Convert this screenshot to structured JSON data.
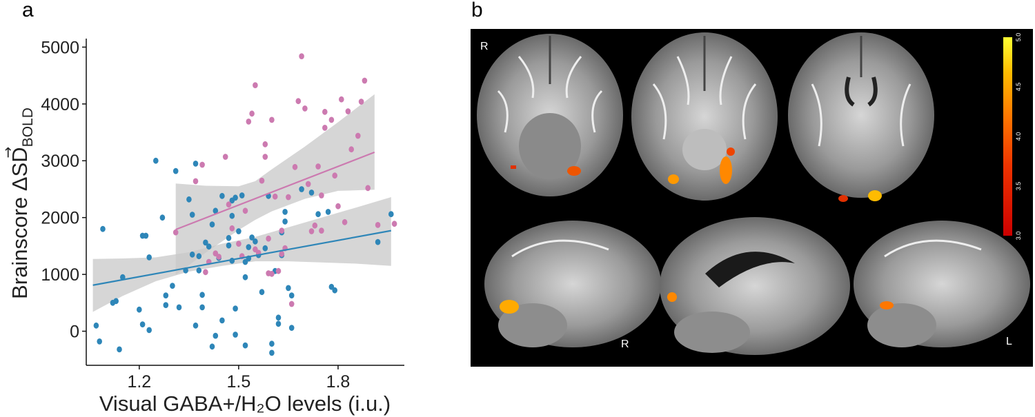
{
  "panel_labels": {
    "a": "a",
    "b": "b"
  },
  "chart_data": {
    "type": "scatter",
    "xlabel": "Visual GABA+/H₂O levels (i.u.)",
    "ylabel_main": "Brainscore ",
    "ylabel_sym": "ΔSD",
    "ylabel_sub": "BOLD",
    "xlim": [
      1.04,
      2.0
    ],
    "ylim": [
      -600,
      5150
    ],
    "xticks": [
      1.2,
      1.5,
      1.8
    ],
    "xtick_labels": [
      "1.2",
      "1.5",
      "1.8"
    ],
    "yticks": [
      0,
      1000,
      2000,
      3000,
      4000,
      5000
    ],
    "ytick_labels": [
      "0",
      "1000",
      "2000",
      "3000",
      "4000",
      "5000"
    ],
    "grid": false,
    "series": [
      {
        "color": "#2e86b8",
        "points": [
          [
            1.07,
            100
          ],
          [
            1.08,
            -180
          ],
          [
            1.09,
            1800
          ],
          [
            1.12,
            500
          ],
          [
            1.13,
            530
          ],
          [
            1.14,
            -320
          ],
          [
            1.15,
            950
          ],
          [
            1.2,
            380
          ],
          [
            1.21,
            1680
          ],
          [
            1.21,
            120
          ],
          [
            1.22,
            1680
          ],
          [
            1.23,
            1300
          ],
          [
            1.23,
            20
          ],
          [
            1.25,
            3000
          ],
          [
            1.27,
            2000
          ],
          [
            1.28,
            630
          ],
          [
            1.28,
            460
          ],
          [
            1.3,
            800
          ],
          [
            1.31,
            2820
          ],
          [
            1.32,
            420
          ],
          [
            1.34,
            1070
          ],
          [
            1.35,
            2320
          ],
          [
            1.36,
            2050
          ],
          [
            1.36,
            1350
          ],
          [
            1.37,
            2950
          ],
          [
            1.37,
            100
          ],
          [
            1.38,
            1070
          ],
          [
            1.38,
            1320
          ],
          [
            1.39,
            640
          ],
          [
            1.39,
            420
          ],
          [
            1.4,
            1560
          ],
          [
            1.41,
            1490
          ],
          [
            1.42,
            1880
          ],
          [
            1.42,
            -270
          ],
          [
            1.43,
            2120
          ],
          [
            1.43,
            -80
          ],
          [
            1.44,
            1290
          ],
          [
            1.45,
            2380
          ],
          [
            1.45,
            190
          ],
          [
            1.47,
            1640
          ],
          [
            1.47,
            1510
          ],
          [
            1.48,
            2300
          ],
          [
            1.48,
            2030
          ],
          [
            1.48,
            1240
          ],
          [
            1.49,
            2350
          ],
          [
            1.49,
            400
          ],
          [
            1.49,
            -60
          ],
          [
            1.5,
            1760
          ],
          [
            1.51,
            2390
          ],
          [
            1.52,
            950
          ],
          [
            1.52,
            1220
          ],
          [
            1.52,
            -250
          ],
          [
            1.53,
            1480
          ],
          [
            1.53,
            1280
          ],
          [
            1.54,
            1650
          ],
          [
            1.55,
            1580
          ],
          [
            1.56,
            1340
          ],
          [
            1.57,
            690
          ],
          [
            1.58,
            1460
          ],
          [
            1.59,
            2380
          ],
          [
            1.6,
            -220
          ],
          [
            1.6,
            -380
          ],
          [
            1.61,
            1060
          ],
          [
            1.62,
            240
          ],
          [
            1.62,
            130
          ],
          [
            1.63,
            1740
          ],
          [
            1.63,
            1340
          ],
          [
            1.64,
            2100
          ],
          [
            1.64,
            1930
          ],
          [
            1.65,
            760
          ],
          [
            1.66,
            60
          ],
          [
            1.66,
            630
          ],
          [
            1.69,
            2500
          ],
          [
            1.72,
            2440
          ],
          [
            1.74,
            2060
          ],
          [
            1.77,
            2100
          ],
          [
            1.78,
            780
          ],
          [
            1.79,
            720
          ],
          [
            1.92,
            1570
          ],
          [
            1.96,
            2060
          ]
        ],
        "trend": {
          "x": [
            1.06,
            1.96
          ],
          "y": [
            810,
            1770
          ]
        }
      },
      {
        "color": "#cc7ab0",
        "points": [
          [
            1.31,
            1740
          ],
          [
            1.37,
            2640
          ],
          [
            1.39,
            2930
          ],
          [
            1.41,
            1220
          ],
          [
            1.4,
            1040
          ],
          [
            1.43,
            1370
          ],
          [
            1.44,
            1310
          ],
          [
            1.46,
            3070
          ],
          [
            1.47,
            2230
          ],
          [
            1.48,
            1810
          ],
          [
            1.5,
            1540
          ],
          [
            1.51,
            1320
          ],
          [
            1.52,
            2120
          ],
          [
            1.53,
            3690
          ],
          [
            1.54,
            3830
          ],
          [
            1.55,
            4330
          ],
          [
            1.55,
            1440
          ],
          [
            1.56,
            1380
          ],
          [
            1.57,
            2650
          ],
          [
            1.58,
            3070
          ],
          [
            1.58,
            3290
          ],
          [
            1.59,
            1630
          ],
          [
            1.59,
            1020
          ],
          [
            1.6,
            1010
          ],
          [
            1.6,
            3720
          ],
          [
            1.61,
            2370
          ],
          [
            1.62,
            1060
          ],
          [
            1.63,
            1770
          ],
          [
            1.63,
            1360
          ],
          [
            1.64,
            1460
          ],
          [
            1.65,
            2360
          ],
          [
            1.66,
            480
          ],
          [
            1.67,
            2890
          ],
          [
            1.68,
            4050
          ],
          [
            1.69,
            4840
          ],
          [
            1.7,
            3920
          ],
          [
            1.71,
            2590
          ],
          [
            1.72,
            1760
          ],
          [
            1.73,
            1860
          ],
          [
            1.74,
            2900
          ],
          [
            1.75,
            2390
          ],
          [
            1.75,
            1770
          ],
          [
            1.76,
            3580
          ],
          [
            1.76,
            3860
          ],
          [
            1.78,
            3720
          ],
          [
            1.79,
            2740
          ],
          [
            1.8,
            2200
          ],
          [
            1.81,
            4080
          ],
          [
            1.82,
            1920
          ],
          [
            1.83,
            3870
          ],
          [
            1.84,
            3200
          ],
          [
            1.86,
            3440
          ],
          [
            1.87,
            4040
          ],
          [
            1.88,
            4410
          ],
          [
            1.89,
            2520
          ],
          [
            1.92,
            1870
          ],
          [
            1.97,
            1890
          ]
        ],
        "trend": {
          "x": [
            1.31,
            1.91
          ],
          "y": [
            1790,
            3150
          ]
        }
      }
    ],
    "confidence_bands": [
      {
        "upper": [
          [
            1.06,
            1270
          ],
          [
            1.15,
            1280
          ],
          [
            1.25,
            1300
          ],
          [
            1.35,
            1390
          ],
          [
            1.45,
            1540
          ],
          [
            1.55,
            1660
          ],
          [
            1.65,
            1830
          ],
          [
            1.75,
            2000
          ],
          [
            1.85,
            2170
          ],
          [
            1.96,
            2360
          ]
        ],
        "lower": [
          [
            1.06,
            340
          ],
          [
            1.15,
            620
          ],
          [
            1.25,
            880
          ],
          [
            1.35,
            1050
          ],
          [
            1.45,
            1150
          ],
          [
            1.55,
            1230
          ],
          [
            1.65,
            1230
          ],
          [
            1.75,
            1210
          ],
          [
            1.85,
            1190
          ],
          [
            1.96,
            1150
          ]
        ]
      },
      {
        "upper": [
          [
            1.31,
            2600
          ],
          [
            1.4,
            2560
          ],
          [
            1.5,
            2550
          ],
          [
            1.55,
            2640
          ],
          [
            1.6,
            2850
          ],
          [
            1.7,
            3250
          ],
          [
            1.8,
            3680
          ],
          [
            1.91,
            4170
          ]
        ],
        "lower": [
          [
            1.31,
            990
          ],
          [
            1.4,
            1380
          ],
          [
            1.5,
            1780
          ],
          [
            1.55,
            1960
          ],
          [
            1.6,
            2110
          ],
          [
            1.7,
            2330
          ],
          [
            1.8,
            2470
          ],
          [
            1.91,
            2490
          ]
        ]
      }
    ]
  },
  "brain_panel": {
    "orientation_labels": {
      "top_right": "R",
      "sag_mid": "R",
      "sag_right": "L"
    },
    "colorbar": {
      "ticks": [
        "5.0",
        "4.5",
        "4.0",
        "3.5",
        "3.0"
      ],
      "min": 3.0,
      "max": 5.0,
      "colors": [
        "#cc0000",
        "#ee3300",
        "#ff7700",
        "#ffbb00",
        "#ffff33"
      ]
    }
  }
}
